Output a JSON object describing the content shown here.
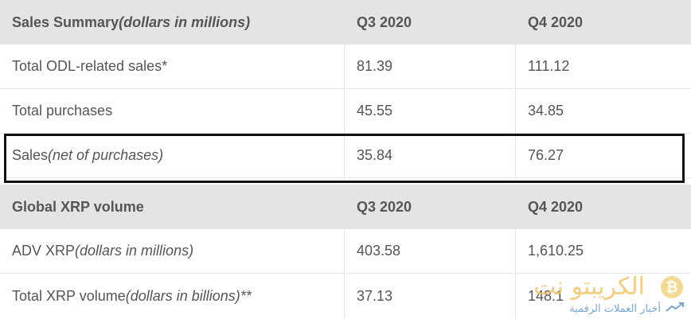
{
  "summary_header": {
    "title_prefix": "Sales Summary ",
    "title_italic": "(dollars in millions)",
    "col_q3": "Q3 2020",
    "col_q4": "Q4 2020"
  },
  "summary_rows": [
    {
      "label": "Total ODL-related sales*",
      "label_italic": "",
      "q3": "81.39",
      "q4": "111.12"
    },
    {
      "label": "Total purchases",
      "label_italic": "",
      "q3": "45.55",
      "q4": "34.85"
    },
    {
      "label": "Sales ",
      "label_italic": "(net of purchases)",
      "q3": "35.84",
      "q4": "76.27"
    }
  ],
  "volume_header": {
    "title": "Global XRP volume",
    "col_q3": "Q3 2020",
    "col_q4": "Q4 2020"
  },
  "volume_rows": [
    {
      "label": "ADV XRP ",
      "label_italic": "(dollars in millions)",
      "q3": "403.58",
      "q4": "1,610.25"
    },
    {
      "label": "Total XRP volume ",
      "label_italic": "(dollars in billions)**",
      "q3": "37.13",
      "q4": "148.1"
    }
  ],
  "watermark": {
    "name": "الكريبتو نت",
    "tagline": "أخبار العملات الرقمية",
    "coin_symbol": "₿",
    "colors": {
      "gold": "#f1c56a",
      "blue": "#7aa6cc"
    }
  }
}
